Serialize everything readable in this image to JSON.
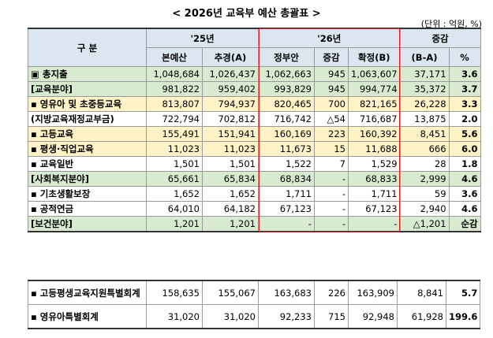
{
  "title": "< 2026년 교육부 예산 총괄표 >",
  "unit": "(단위 : 억원, %)",
  "header": {
    "category": "구 분",
    "y25": "'25년",
    "y26": "'26년",
    "change": "증감",
    "columns": [
      "본예산",
      "추경(A)",
      "정부안",
      "증감",
      "확정(B)",
      "(B-A)",
      "%"
    ]
  },
  "rows": [
    {
      "label": "▣ 총지출",
      "fill": "#d8ebd0",
      "cells": [
        "1,048,684",
        "1,026,437",
        "1,062,663",
        "945",
        "1,063,607",
        "37,171",
        "3.6"
      ]
    },
    {
      "label": "[교육분야]",
      "fill": "#d8ebd0",
      "cells": [
        "981,822",
        "959,402",
        "993,829",
        "945",
        "994,774",
        "35,372",
        "3.7"
      ]
    },
    {
      "label": "▪ 영유아 및 초중등교육",
      "fill": "#fff2c6",
      "cells": [
        "813,807",
        "794,937",
        "820,465",
        "700",
        "821,165",
        "26,228",
        "3.3"
      ]
    },
    {
      "label": "(지방교육재정교부금)",
      "fill": "#ffffff",
      "cells": [
        "722,794",
        "702,812",
        "716,742",
        "△54",
        "716,687",
        "13,875",
        "2.0"
      ]
    },
    {
      "label": "▪ 고등교육",
      "fill": "#fff2c6",
      "cells": [
        "155,491",
        "151,941",
        "160,169",
        "223",
        "160,392",
        "8,451",
        "5.6"
      ]
    },
    {
      "label": "▪ 평생·직업교육",
      "fill": "#fff2c6",
      "cells": [
        "11,023",
        "11,023",
        "11,673",
        "15",
        "11,688",
        "666",
        "6.0"
      ]
    },
    {
      "label": "▪ 교육일반",
      "fill": "#ffffff",
      "cells": [
        "1,501",
        "1,501",
        "1,522",
        "7",
        "1,529",
        "28",
        "1.8"
      ]
    },
    {
      "label": "[사회복지분야]",
      "fill": "#d8ebd0",
      "cells": [
        "65,661",
        "65,834",
        "68,834",
        "-",
        "68,833",
        "2,999",
        "4.6"
      ]
    },
    {
      "label": "▪ 기초생활보장",
      "fill": "#ffffff",
      "cells": [
        "1,652",
        "1,652",
        "1,711",
        "-",
        "1,711",
        "59",
        "3.6"
      ]
    },
    {
      "label": "▪ 공적연금",
      "fill": "#ffffff",
      "cells": [
        "64,010",
        "64,182",
        "67,123",
        "-",
        "67,123",
        "2,940",
        "4.6"
      ]
    },
    {
      "label": "[보건분야]",
      "fill": "#d8ebd0",
      "cells": [
        "1,201",
        "1,201",
        "-",
        "-",
        "-",
        "△1,201",
        "순감"
      ]
    }
  ],
  "special_rows": [
    {
      "label": "▪ 고등평생교육지원특별회계",
      "cells": [
        "158,635",
        "155,067",
        "163,683",
        "226",
        "163,909",
        "8,841",
        "5.7"
      ]
    },
    {
      "label": "▪ 영유아특별회계",
      "cells": [
        "31,020",
        "31,020",
        "92,233",
        "715",
        "92,948",
        "61,928",
        "199.6"
      ]
    }
  ]
}
